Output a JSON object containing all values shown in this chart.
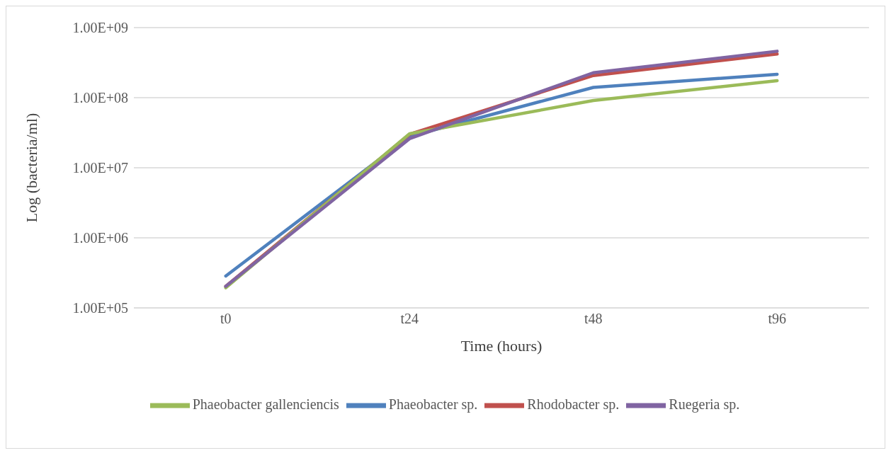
{
  "chart_data": {
    "type": "line",
    "xlabel": "Time  (hours)",
    "ylabel": "Log (bacteria/ml)",
    "categories": [
      "t0",
      "t24",
      "t48",
      "t96"
    ],
    "series": [
      {
        "name": "Phaeobacter sp.",
        "color": "#4f81bd",
        "values": [
          285000,
          28000000,
          140000000,
          216000000
        ]
      },
      {
        "name": "Rhodobacter sp.",
        "color": "#c0504d",
        "values": [
          203000,
          30000000,
          207000000,
          420000000
        ]
      },
      {
        "name": "Phaeobacter gallenciencis",
        "color": "#9bbb59",
        "values": [
          194000,
          30500000,
          91000000,
          175000000
        ]
      },
      {
        "name": "Ruegeria sp.",
        "color": "#8064a2",
        "values": [
          203000,
          26000000,
          227000000,
          460000000
        ]
      }
    ],
    "log": "y",
    "ylim": [
      100000,
      1000000000
    ],
    "yticks": [
      {
        "value": 100000,
        "label": "1.00E+05"
      },
      {
        "value": 1000000,
        "label": "1.00E+06"
      },
      {
        "value": 10000000,
        "label": "1.00E+07"
      },
      {
        "value": 100000000,
        "label": "1.00E+08"
      },
      {
        "value": 1000000000,
        "label": "1.00E+09"
      }
    ],
    "grid": "y",
    "legend": "bottom",
    "marker": "none",
    "line_style": "solid"
  }
}
